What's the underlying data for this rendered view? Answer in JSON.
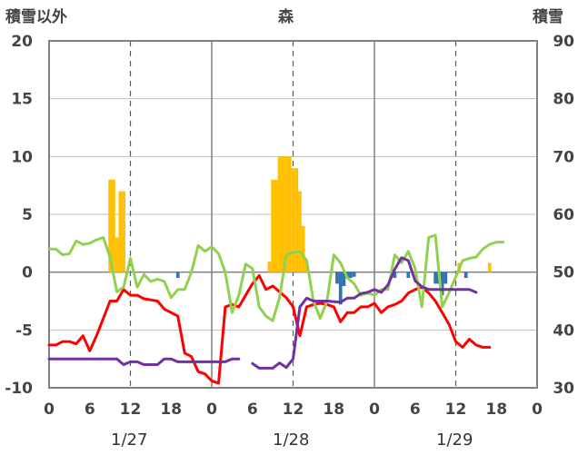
{
  "chart_data": {
    "type": "combo",
    "title": "森",
    "left_axis_label": "積雪以外",
    "right_axis_label": "積雪",
    "left_ylim": [
      -10,
      20
    ],
    "left_ticks": [
      -10,
      -5,
      0,
      5,
      10,
      15,
      20
    ],
    "right_ylim": [
      30,
      90
    ],
    "right_ticks": [
      30,
      40,
      50,
      60,
      70,
      80,
      90
    ],
    "x_range_hours": [
      0,
      72
    ],
    "x_tick_labels": [
      "0",
      "6",
      "12",
      "18",
      "0",
      "6",
      "12",
      "18",
      "0",
      "6",
      "12",
      "18",
      "0"
    ],
    "day_labels": [
      "1/27",
      "1/28",
      "1/29"
    ],
    "grid": "dashed vertical at 12h, solid vertical at day boundaries",
    "colors": {
      "precip_pos": "#ffc000",
      "precip_neg": "#2e75b6",
      "temperature": "#ff0000",
      "wind": "#92d050",
      "snow_depth": "#7030a0"
    },
    "precip_bars": [
      {
        "h": 9,
        "v": 8
      },
      {
        "h": 9.5,
        "v": 8
      },
      {
        "h": 10,
        "v": 3
      },
      {
        "h": 10.5,
        "v": 7
      },
      {
        "h": 11,
        "v": 7
      },
      {
        "h": 19,
        "v": -0.5
      },
      {
        "h": 32.5,
        "v": 0.9
      },
      {
        "h": 33,
        "v": 8
      },
      {
        "h": 33.5,
        "v": 8
      },
      {
        "h": 34,
        "v": 10
      },
      {
        "h": 34.5,
        "v": 10
      },
      {
        "h": 35,
        "v": 10
      },
      {
        "h": 35.5,
        "v": 10
      },
      {
        "h": 36,
        "v": 9
      },
      {
        "h": 36.5,
        "v": 9
      },
      {
        "h": 37,
        "v": 7
      },
      {
        "h": 37.5,
        "v": 4
      },
      {
        "h": 38,
        "v": 1
      },
      {
        "h": 42.5,
        "v": -1
      },
      {
        "h": 43,
        "v": -2.8
      },
      {
        "h": 43.5,
        "v": -1.2
      },
      {
        "h": 44,
        "v": -0.5
      },
      {
        "h": 44.5,
        "v": -0.5
      },
      {
        "h": 45,
        "v": -0.4
      },
      {
        "h": 51,
        "v": -0.5
      },
      {
        "h": 53,
        "v": -0.5
      },
      {
        "h": 57,
        "v": -1
      },
      {
        "h": 57.5,
        "v": -1
      },
      {
        "h": 58,
        "v": -2
      },
      {
        "h": 58.5,
        "v": -1
      },
      {
        "h": 60.5,
        "v": 0.8
      },
      {
        "h": 61.5,
        "v": -0.5
      },
      {
        "h": 65,
        "v": 0.8
      }
    ],
    "series": [
      {
        "axis": "left",
        "color": "#ff0000",
        "points": [
          [
            0,
            -6.3
          ],
          [
            1,
            -6.3
          ],
          [
            2,
            -6
          ],
          [
            3,
            -6
          ],
          [
            4,
            -6.2
          ],
          [
            5,
            -5.5
          ],
          [
            6,
            -6.8
          ],
          [
            7,
            -5.5
          ],
          [
            8,
            -4
          ],
          [
            9,
            -2.5
          ],
          [
            10,
            -2.5
          ],
          [
            11,
            -1.5
          ],
          [
            12,
            -2
          ],
          [
            13,
            -2
          ],
          [
            14,
            -2.3
          ],
          [
            15,
            -2.4
          ],
          [
            16,
            -2.5
          ],
          [
            17,
            -3.2
          ],
          [
            18,
            -3.5
          ],
          [
            19,
            -3.8
          ],
          [
            20,
            -7
          ],
          [
            21,
            -7.3
          ],
          [
            22,
            -8.6
          ],
          [
            23,
            -8.8
          ],
          [
            24,
            -9.4
          ],
          [
            25,
            -9.6
          ],
          [
            26,
            -3
          ],
          [
            27,
            -2.8
          ],
          [
            28,
            -3
          ],
          [
            29,
            -2
          ],
          [
            30,
            -1
          ],
          [
            31,
            -0.3
          ],
          [
            32,
            -1.5
          ],
          [
            33,
            -1.2
          ],
          [
            34,
            -1.7
          ],
          [
            35,
            -2.2
          ],
          [
            36,
            -3
          ],
          [
            37,
            -5.5
          ],
          [
            38,
            -3
          ],
          [
            39,
            -2.8
          ],
          [
            40,
            -2.7
          ],
          [
            41,
            -2.8
          ],
          [
            42,
            -3
          ],
          [
            43,
            -4.3
          ],
          [
            44,
            -3.5
          ],
          [
            45,
            -3.5
          ],
          [
            46,
            -3
          ],
          [
            47,
            -3
          ],
          [
            48,
            -2.7
          ],
          [
            49,
            -3.5
          ],
          [
            50,
            -3
          ],
          [
            51,
            -2.8
          ],
          [
            52,
            -2.5
          ],
          [
            53,
            -1.8
          ],
          [
            54,
            -1.5
          ],
          [
            55,
            -1.3
          ],
          [
            56,
            -1.8
          ],
          [
            57,
            -2.5
          ],
          [
            58,
            -3.5
          ],
          [
            59,
            -4.5
          ],
          [
            60,
            -6
          ],
          [
            61,
            -6.5
          ],
          [
            62,
            -5.8
          ],
          [
            63,
            -6.3
          ],
          [
            64,
            -6.5
          ],
          [
            65,
            -6.5
          ]
        ]
      },
      {
        "axis": "left",
        "color": "#92d050",
        "points": [
          [
            0,
            2
          ],
          [
            1,
            2
          ],
          [
            2,
            1.5
          ],
          [
            3,
            1.6
          ],
          [
            4,
            2.7
          ],
          [
            5,
            2.4
          ],
          [
            6,
            2.5
          ],
          [
            7,
            2.8
          ],
          [
            8,
            3
          ],
          [
            9,
            1.3
          ],
          [
            10,
            -1.7
          ],
          [
            11,
            -1.3
          ],
          [
            12,
            1.2
          ],
          [
            13,
            -1.3
          ],
          [
            14,
            -0.2
          ],
          [
            15,
            -0.8
          ],
          [
            16,
            -0.6
          ],
          [
            17,
            -0.8
          ],
          [
            18,
            -2.2
          ],
          [
            19,
            -1.5
          ],
          [
            20,
            -1.5
          ],
          [
            21,
            0
          ],
          [
            22,
            2.3
          ],
          [
            23,
            1.8
          ],
          [
            24,
            2.2
          ],
          [
            25,
            1.6
          ],
          [
            26,
            0
          ],
          [
            27,
            -3.5
          ],
          [
            28,
            -2
          ],
          [
            29,
            0.7
          ],
          [
            30,
            0.3
          ],
          [
            31,
            -3
          ],
          [
            32,
            -3.8
          ],
          [
            33,
            -4.2
          ],
          [
            34,
            -2.2
          ],
          [
            35,
            1.5
          ],
          [
            36,
            1.7
          ],
          [
            37,
            1.8
          ],
          [
            38,
            1
          ],
          [
            39,
            -2.5
          ],
          [
            40,
            -4
          ],
          [
            41,
            -2.5
          ],
          [
            42,
            1.5
          ],
          [
            43,
            0.8
          ],
          [
            44,
            -0.5
          ],
          [
            45,
            -1
          ],
          [
            46,
            -2
          ],
          [
            47,
            -1.8
          ],
          [
            48,
            -2
          ],
          [
            49,
            -1.5
          ],
          [
            50,
            -1.5
          ],
          [
            51,
            1.5
          ],
          [
            52,
            0.8
          ],
          [
            53,
            1.8
          ],
          [
            54,
            0.3
          ],
          [
            55,
            -3
          ],
          [
            56,
            3
          ],
          [
            57,
            3.2
          ],
          [
            58,
            -3
          ],
          [
            59,
            -1.8
          ],
          [
            60,
            -0.4
          ],
          [
            61,
            1
          ],
          [
            62,
            1.2
          ],
          [
            63,
            1.3
          ],
          [
            64,
            2
          ],
          [
            65,
            2.4
          ],
          [
            66,
            2.6
          ],
          [
            67,
            2.6
          ]
        ]
      },
      {
        "axis": "right",
        "color": "#7030a0",
        "segments": [
          [
            [
              0,
              35
            ],
            [
              1,
              35
            ],
            [
              9,
              35
            ],
            [
              10,
              35
            ],
            [
              11,
              34
            ],
            [
              12,
              34.5
            ],
            [
              13,
              34.5
            ],
            [
              14,
              34
            ],
            [
              16,
              34
            ],
            [
              17,
              35
            ],
            [
              18,
              35
            ],
            [
              19,
              34.5
            ],
            [
              21,
              34.5
            ],
            [
              23,
              34.5
            ],
            [
              26,
              34.5
            ],
            [
              27,
              35
            ],
            [
              28,
              35
            ]
          ],
          [
            [
              30,
              34.2
            ],
            [
              31,
              33.4
            ],
            [
              33,
              33.4
            ],
            [
              34,
              34.3
            ],
            [
              35,
              33.5
            ],
            [
              36,
              35
            ],
            [
              37,
              44
            ],
            [
              38,
              45.5
            ],
            [
              39,
              45
            ],
            [
              41,
              45
            ],
            [
              43,
              44.8
            ],
            [
              44,
              45.5
            ],
            [
              45,
              45.5
            ],
            [
              46,
              46.3
            ],
            [
              47,
              46.5
            ],
            [
              48,
              47
            ],
            [
              49,
              46.5
            ],
            [
              50,
              47.8
            ],
            [
              51,
              50.5
            ],
            [
              52,
              52.5
            ],
            [
              53,
              52
            ],
            [
              54,
              48.5
            ],
            [
              55,
              47.5
            ],
            [
              56,
              47
            ],
            [
              57,
              47
            ],
            [
              58,
              47
            ],
            [
              59,
              47
            ],
            [
              60,
              47
            ],
            [
              61,
              47
            ],
            [
              62,
              47
            ],
            [
              63,
              46.5
            ]
          ]
        ]
      }
    ]
  }
}
